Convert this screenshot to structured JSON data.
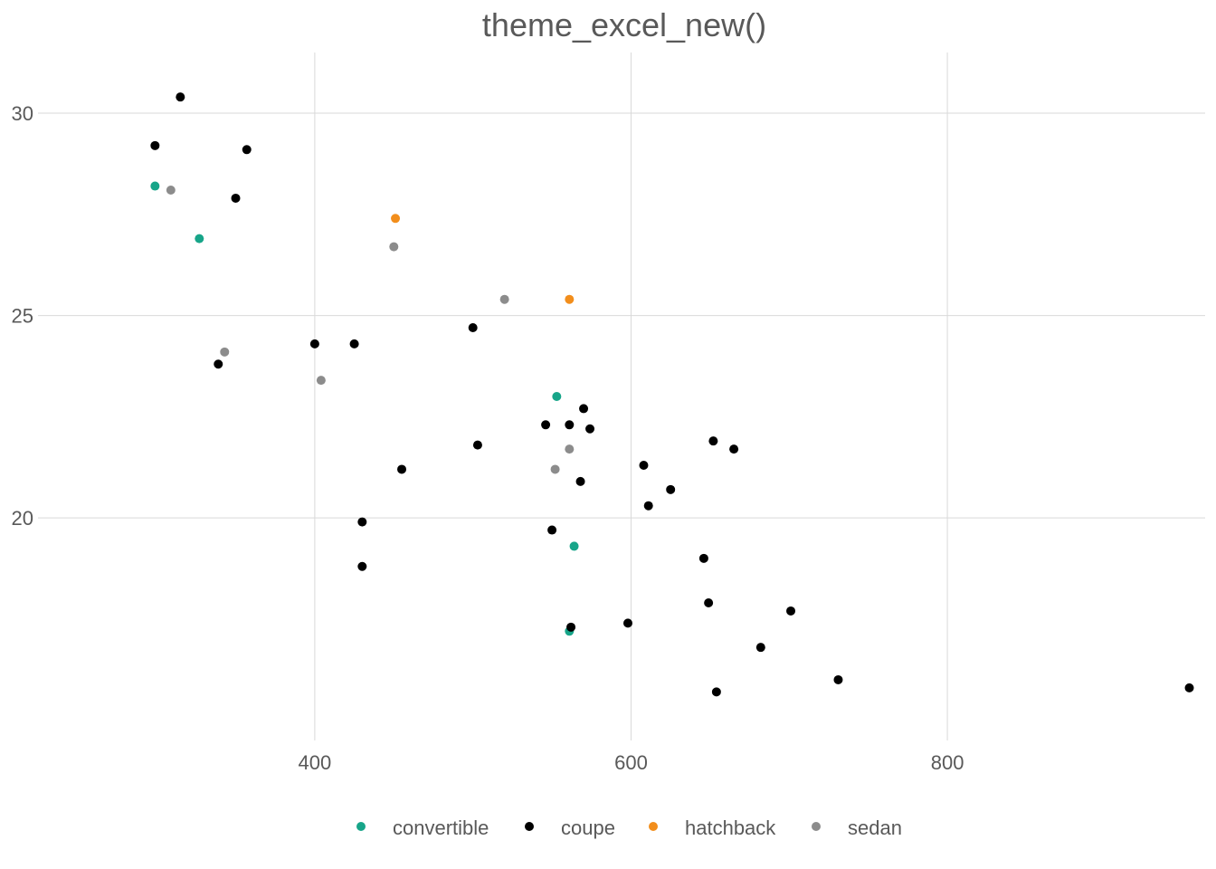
{
  "chart_data": {
    "type": "scatter",
    "title": "theme_excel_new()",
    "xlabel": "",
    "ylabel": "",
    "xlim": [
      225,
      963
    ],
    "ylim": [
      14.5,
      31.5
    ],
    "x_ticks": [
      400,
      600,
      800
    ],
    "y_ticks": [
      20,
      25,
      30
    ],
    "grid": true,
    "legend_position": "bottom",
    "colors": {
      "convertible": "#17a589",
      "coupe": "#000000",
      "hatchback": "#f28e1c",
      "sedan": "#8c8c8c"
    },
    "legend": [
      "convertible",
      "coupe",
      "hatchback",
      "sedan"
    ],
    "series": [
      {
        "name": "convertible",
        "points": [
          [
            299,
            28.2
          ],
          [
            327,
            26.9
          ],
          [
            553,
            23.0
          ],
          [
            564,
            19.3
          ],
          [
            561,
            17.2
          ]
        ]
      },
      {
        "name": "coupe",
        "points": [
          [
            315,
            30.4
          ],
          [
            299,
            29.2
          ],
          [
            357,
            29.1
          ],
          [
            350,
            27.9
          ],
          [
            400,
            24.3
          ],
          [
            425,
            24.3
          ],
          [
            339,
            23.8
          ],
          [
            500,
            24.7
          ],
          [
            570,
            22.7
          ],
          [
            561,
            22.3
          ],
          [
            546,
            22.3
          ],
          [
            574,
            22.2
          ],
          [
            503,
            21.8
          ],
          [
            455,
            21.2
          ],
          [
            568,
            20.9
          ],
          [
            652,
            21.9
          ],
          [
            665,
            21.7
          ],
          [
            608,
            21.3
          ],
          [
            625,
            20.7
          ],
          [
            611,
            20.3
          ],
          [
            430,
            19.9
          ],
          [
            550,
            19.7
          ],
          [
            430,
            18.8
          ],
          [
            646,
            19.0
          ],
          [
            649,
            17.9
          ],
          [
            701,
            17.7
          ],
          [
            598,
            17.4
          ],
          [
            562,
            17.3
          ],
          [
            682,
            16.8
          ],
          [
            731,
            16.0
          ],
          [
            654,
            15.7
          ],
          [
            953,
            15.8
          ]
        ]
      },
      {
        "name": "hatchback",
        "points": [
          [
            451,
            27.4
          ],
          [
            561,
            25.4
          ]
        ]
      },
      {
        "name": "sedan",
        "points": [
          [
            309,
            28.1
          ],
          [
            450,
            26.7
          ],
          [
            520,
            25.4
          ],
          [
            343,
            24.1
          ],
          [
            404,
            23.4
          ],
          [
            561,
            21.7
          ],
          [
            552,
            21.2
          ]
        ]
      }
    ]
  }
}
